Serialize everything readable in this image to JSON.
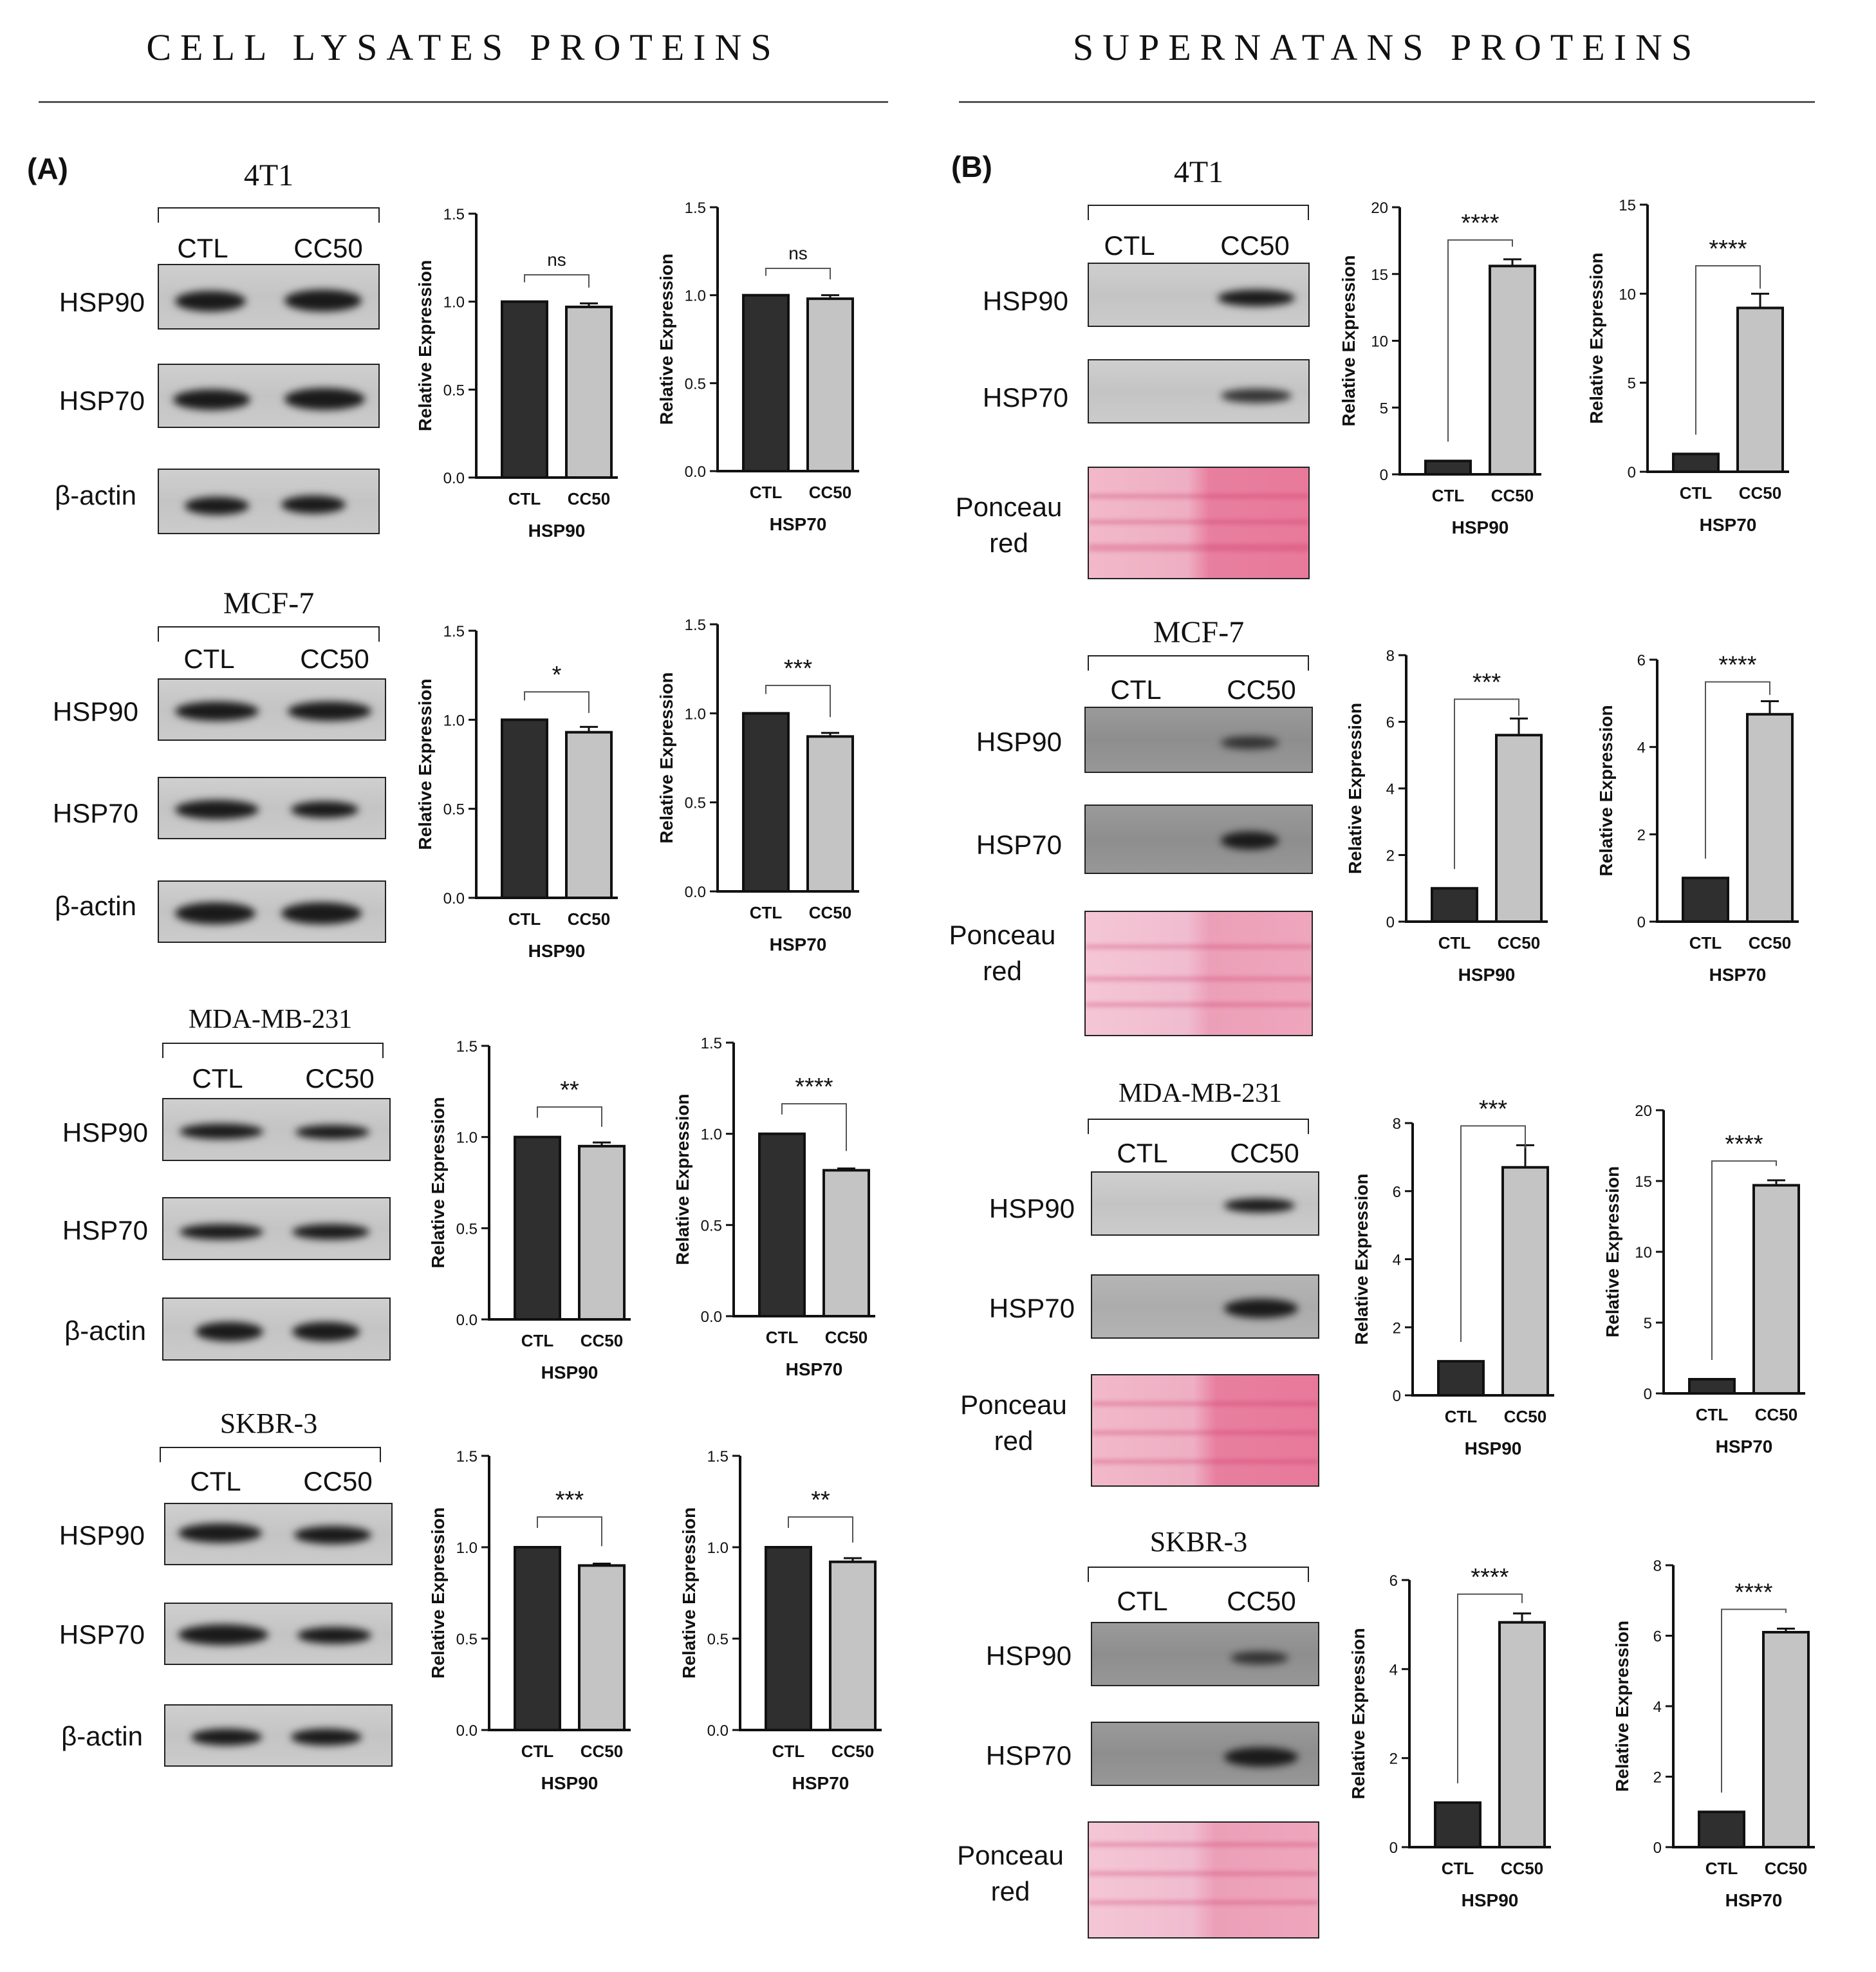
{
  "headers": {
    "left": "CELL LYSATES PROTEINS",
    "right": "SUPERNATANS PROTEINS"
  },
  "panels": {
    "A": "(A)",
    "B": "(B)"
  },
  "lanes": [
    "CTL",
    "CC50"
  ],
  "blot_rows": {
    "hsp90": "HSP90",
    "hsp70": "HSP70",
    "actin": "β-actin",
    "ponceau_line1": "Ponceau",
    "ponceau_line2": "red"
  },
  "cell_lines": [
    "4T1",
    "MCF-7",
    "MDA-MB-231",
    "SKBR-3"
  ],
  "colors": {
    "ctl_bar": "#2f2f2f",
    "cc50_bar": "#c4c4c4",
    "ponceau": "#e87f9f"
  },
  "chart_data": [
    {
      "panel": "A",
      "cell_line": "4T1",
      "type": "bar",
      "categories": [
        "CTL",
        "CC50"
      ],
      "values": [
        1.0,
        0.97
      ],
      "error": [
        0,
        0.02
      ],
      "xlabel": "HSP90",
      "ylabel": "Relative Expression",
      "ylim": [
        0,
        1.5
      ],
      "yticks": [
        "0.0",
        "0.5",
        "1.0",
        "1.5"
      ],
      "significance": "ns"
    },
    {
      "panel": "A",
      "cell_line": "4T1",
      "type": "bar",
      "categories": [
        "CTL",
        "CC50"
      ],
      "values": [
        1.0,
        0.98
      ],
      "error": [
        0,
        0.02
      ],
      "xlabel": "HSP70",
      "ylabel": "Relative Expression",
      "ylim": [
        0,
        1.5
      ],
      "yticks": [
        "0.0",
        "0.5",
        "1.0",
        "1.5"
      ],
      "significance": "ns"
    },
    {
      "panel": "A",
      "cell_line": "MCF-7",
      "type": "bar",
      "categories": [
        "CTL",
        "CC50"
      ],
      "values": [
        1.0,
        0.93
      ],
      "error": [
        0,
        0.03
      ],
      "xlabel": "HSP90",
      "ylabel": "Relative Expression",
      "ylim": [
        0,
        1.5
      ],
      "yticks": [
        "0.0",
        "0.5",
        "1.0",
        "1.5"
      ],
      "significance": "*"
    },
    {
      "panel": "A",
      "cell_line": "MCF-7",
      "type": "bar",
      "categories": [
        "CTL",
        "CC50"
      ],
      "values": [
        1.0,
        0.87
      ],
      "error": [
        0,
        0.02
      ],
      "xlabel": "HSP70",
      "ylabel": "Relative Expression",
      "ylim": [
        0,
        1.5
      ],
      "yticks": [
        "0.0",
        "0.5",
        "1.0",
        "1.5"
      ],
      "significance": "***"
    },
    {
      "panel": "A",
      "cell_line": "MDA-MB-231",
      "type": "bar",
      "categories": [
        "CTL",
        "CC50"
      ],
      "values": [
        1.0,
        0.95
      ],
      "error": [
        0,
        0.02
      ],
      "xlabel": "HSP90",
      "ylabel": "Relative Expression",
      "ylim": [
        0,
        1.5
      ],
      "yticks": [
        "0.0",
        "0.5",
        "1.0",
        "1.5"
      ],
      "significance": "**"
    },
    {
      "panel": "A",
      "cell_line": "MDA-MB-231",
      "type": "bar",
      "categories": [
        "CTL",
        "CC50"
      ],
      "values": [
        1.0,
        0.8
      ],
      "error": [
        0,
        0.01
      ],
      "xlabel": "HSP70",
      "ylabel": "Relative Expression",
      "ylim": [
        0,
        1.5
      ],
      "yticks": [
        "0.0",
        "0.5",
        "1.0",
        "1.5"
      ],
      "significance": "****"
    },
    {
      "panel": "A",
      "cell_line": "SKBR-3",
      "type": "bar",
      "categories": [
        "CTL",
        "CC50"
      ],
      "values": [
        1.0,
        0.9
      ],
      "error": [
        0,
        0.01
      ],
      "xlabel": "HSP90",
      "ylabel": "Relative Expression",
      "ylim": [
        0,
        1.5
      ],
      "yticks": [
        "0.0",
        "0.5",
        "1.0",
        "1.5"
      ],
      "significance": "***"
    },
    {
      "panel": "A",
      "cell_line": "SKBR-3",
      "type": "bar",
      "categories": [
        "CTL",
        "CC50"
      ],
      "values": [
        1.0,
        0.92
      ],
      "error": [
        0,
        0.02
      ],
      "xlabel": "HSP70",
      "ylabel": "Relative Expression",
      "ylim": [
        0,
        1.5
      ],
      "yticks": [
        "0.0",
        "0.5",
        "1.0",
        "1.5"
      ],
      "significance": "**"
    },
    {
      "panel": "B",
      "cell_line": "4T1",
      "type": "bar",
      "categories": [
        "CTL",
        "CC50"
      ],
      "values": [
        1.0,
        15.6
      ],
      "error": [
        0,
        0.5
      ],
      "xlabel": "HSP90",
      "ylabel": "Relative Expression",
      "ylim": [
        0,
        20
      ],
      "yticks": [
        "0",
        "5",
        "10",
        "15",
        "20"
      ],
      "significance": "****"
    },
    {
      "panel": "B",
      "cell_line": "4T1",
      "type": "bar",
      "categories": [
        "CTL",
        "CC50"
      ],
      "values": [
        1.0,
        9.2
      ],
      "error": [
        0,
        0.8
      ],
      "xlabel": "HSP70",
      "ylabel": "Relative Expression",
      "ylim": [
        0,
        15
      ],
      "yticks": [
        "0",
        "5",
        "10",
        "15"
      ],
      "significance": "****"
    },
    {
      "panel": "B",
      "cell_line": "MCF-7",
      "type": "bar",
      "categories": [
        "CTL",
        "CC50"
      ],
      "values": [
        1.0,
        5.6
      ],
      "error": [
        0,
        0.5
      ],
      "xlabel": "HSP90",
      "ylabel": "Relative Expression",
      "ylim": [
        0,
        8
      ],
      "yticks": [
        "0",
        "2",
        "4",
        "6",
        "8"
      ],
      "significance": "***"
    },
    {
      "panel": "B",
      "cell_line": "MCF-7",
      "type": "bar",
      "categories": [
        "CTL",
        "CC50"
      ],
      "values": [
        1.0,
        4.75
      ],
      "error": [
        0,
        0.3
      ],
      "xlabel": "HSP70",
      "ylabel": "Relative Expression",
      "ylim": [
        0,
        6
      ],
      "yticks": [
        "0",
        "2",
        "4",
        "6"
      ],
      "significance": "****"
    },
    {
      "panel": "B",
      "cell_line": "MDA-MB-231",
      "type": "bar",
      "categories": [
        "CTL",
        "CC50"
      ],
      "values": [
        1.0,
        6.7
      ],
      "error": [
        0,
        0.65
      ],
      "xlabel": "HSP90",
      "ylabel": "Relative Expression",
      "ylim": [
        0,
        8
      ],
      "yticks": [
        "0",
        "2",
        "4",
        "6",
        "8"
      ],
      "significance": "***"
    },
    {
      "panel": "B",
      "cell_line": "MDA-MB-231",
      "type": "bar",
      "categories": [
        "CTL",
        "CC50"
      ],
      "values": [
        1.0,
        14.7
      ],
      "error": [
        0,
        0.35
      ],
      "xlabel": "HSP70",
      "ylabel": "Relative Expression",
      "ylim": [
        0,
        20
      ],
      "yticks": [
        "0",
        "5",
        "10",
        "15",
        "20"
      ],
      "significance": "****"
    },
    {
      "panel": "B",
      "cell_line": "SKBR-3",
      "type": "bar",
      "categories": [
        "CTL",
        "CC50"
      ],
      "values": [
        1.0,
        5.05
      ],
      "error": [
        0,
        0.2
      ],
      "xlabel": "HSP90",
      "ylabel": "Relative Expression",
      "ylim": [
        0,
        6
      ],
      "yticks": [
        "0",
        "2",
        "4",
        "6"
      ],
      "significance": "****"
    },
    {
      "panel": "B",
      "cell_line": "SKBR-3",
      "type": "bar",
      "categories": [
        "CTL",
        "CC50"
      ],
      "values": [
        1.0,
        6.1
      ],
      "error": [
        0,
        0.1
      ],
      "xlabel": "HSP70",
      "ylabel": "Relative Expression",
      "ylim": [
        0,
        8
      ],
      "yticks": [
        "0",
        "2",
        "4",
        "6",
        "8"
      ],
      "significance": "****"
    }
  ]
}
